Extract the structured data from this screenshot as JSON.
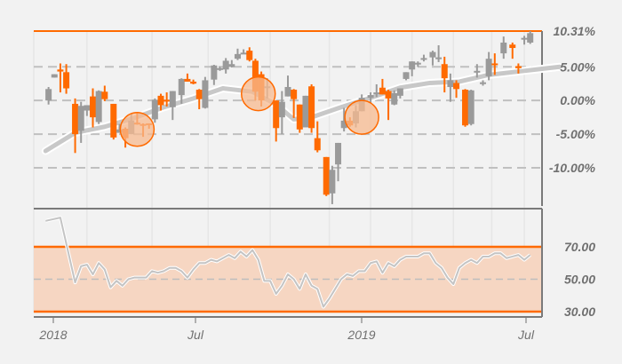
{
  "chart_data": [
    {
      "type": "candlestick",
      "title": "",
      "subtitle": "",
      "xlabel": "",
      "ylabel": "",
      "y_axis_position": "right",
      "y_tick_labels": [
        "10.31%",
        "5.00%",
        "0.00%",
        "-5.00%",
        "-10.00%"
      ],
      "y_ticks": [
        10.31,
        5.0,
        0.0,
        -5.0,
        -10.0
      ],
      "ylim": [
        -15.5,
        10.31
      ],
      "x_tick_labels": [
        "2018",
        "Jul",
        "2019",
        "Jul"
      ],
      "grid": {
        "horizontal": "dashed",
        "vertical": "light"
      },
      "colors": {
        "up": "#9a9a9a",
        "down": "#ff6a00",
        "moving_average": "#c8c8c8",
        "highlight_circle": "#f7b98f"
      },
      "top_line_label": "10.31%",
      "moving_average_series": {
        "name": "moving average",
        "x": [
          0,
          10,
          20,
          30,
          40,
          50,
          60,
          70,
          78,
          84,
          90,
          100,
          110,
          120,
          130,
          140,
          150,
          160,
          170,
          174
        ],
        "values": [
          -7.5,
          -4.8,
          -3.9,
          -2.6,
          -1.0,
          0.3,
          1.8,
          1.3,
          -0.6,
          -2.8,
          -2.5,
          -1.0,
          0.4,
          1.9,
          2.6,
          2.8,
          3.8,
          4.3,
          4.8,
          5.0
        ]
      },
      "candles": [
        {
          "x": 1,
          "open": 0.0,
          "close": 1.7,
          "high": 2.0,
          "low": -0.6
        },
        {
          "x": 3,
          "open": 3.4,
          "close": 3.9,
          "high": 3.9,
          "low": 3.4
        },
        {
          "x": 5,
          "open": 4.6,
          "close": 4.3,
          "high": 5.5,
          "low": 1.2
        },
        {
          "x": 7,
          "open": 4.2,
          "close": 1.8,
          "high": 5.4,
          "low": 1.0
        },
        {
          "x": 10,
          "open": -0.5,
          "close": -5.0,
          "high": 0.3,
          "low": -7.8
        },
        {
          "x": 12,
          "open": -4.5,
          "close": -0.8,
          "high": -0.2,
          "low": -6.3
        },
        {
          "x": 14,
          "open": -1.5,
          "close": -0.7,
          "high": -0.7,
          "low": -2.3
        },
        {
          "x": 16,
          "open": 0.6,
          "close": -2.5,
          "high": 1.8,
          "low": -4.0
        },
        {
          "x": 18,
          "open": -3.2,
          "close": 1.4,
          "high": 1.5,
          "low": -3.5
        },
        {
          "x": 20,
          "open": 1.3,
          "close": 0.2,
          "high": 2.2,
          "low": -0.1
        },
        {
          "x": 23,
          "open": -0.5,
          "close": -5.5,
          "high": -0.5,
          "low": -5.8
        },
        {
          "x": 25,
          "open": -4.8,
          "close": -4.3,
          "high": -3.5,
          "low": -4.8
        },
        {
          "x": 27,
          "open": -4.2,
          "close": -5.6,
          "high": -4.0,
          "low": -7.0
        },
        {
          "x": 29,
          "open": -5.0,
          "close": -3.0,
          "high": -2.0,
          "low": -5.0
        },
        {
          "x": 31,
          "open": -3.3,
          "close": -3.5,
          "high": -1.8,
          "low": -3.6
        },
        {
          "x": 33,
          "open": -3.5,
          "close": -3.6,
          "high": -3.4,
          "low": -5.4
        },
        {
          "x": 35,
          "open": -3.4,
          "close": -3.5,
          "high": -3.4,
          "low": -4.2
        },
        {
          "x": 37,
          "open": -2.8,
          "close": 0.1,
          "high": 0.3,
          "low": -3.3
        },
        {
          "x": 39,
          "open": 0.7,
          "close": -0.7,
          "high": 1.0,
          "low": -1.5
        },
        {
          "x": 41,
          "open": 0.1,
          "close": 0.0,
          "high": 1.2,
          "low": -0.9
        },
        {
          "x": 43,
          "open": -1.0,
          "close": 1.4,
          "high": 1.4,
          "low": -2.9
        },
        {
          "x": 46,
          "open": 0.8,
          "close": 3.2,
          "high": 3.3,
          "low": -0.5
        },
        {
          "x": 48,
          "open": 3.2,
          "close": 2.8,
          "high": 4.0,
          "low": 2.8
        },
        {
          "x": 50,
          "open": 2.8,
          "close": 2.5,
          "high": 3.1,
          "low": 2.4
        },
        {
          "x": 52,
          "open": 1.6,
          "close": 0.2,
          "high": 1.7,
          "low": -1.3
        },
        {
          "x": 54,
          "open": -1.1,
          "close": 3.0,
          "high": 3.5,
          "low": -1.2
        },
        {
          "x": 57,
          "open": 3.1,
          "close": 5.2,
          "high": 5.3,
          "low": 2.3
        },
        {
          "x": 59,
          "open": 4.6,
          "close": 4.8,
          "high": 5.0,
          "low": 4.4
        },
        {
          "x": 61,
          "open": 4.6,
          "close": 5.9,
          "high": 6.3,
          "low": 4.0
        },
        {
          "x": 63,
          "open": 5.0,
          "close": 5.4,
          "high": 6.0,
          "low": 4.9
        },
        {
          "x": 65,
          "open": 6.2,
          "close": 6.9,
          "high": 7.7,
          "low": 6.0
        },
        {
          "x": 67,
          "open": 7.0,
          "close": 7.1,
          "high": 7.6,
          "low": 6.9
        },
        {
          "x": 69,
          "open": 7.4,
          "close": 6.0,
          "high": 7.9,
          "low": 5.8
        },
        {
          "x": 71,
          "open": 5.9,
          "close": 1.3,
          "high": 6.2,
          "low": 0.0
        },
        {
          "x": 73,
          "open": 3.9,
          "close": 0.0,
          "high": 4.3,
          "low": -0.9
        },
        {
          "x": 75,
          "open": 1.9,
          "close": 2.1,
          "high": 3.3,
          "low": 0.3
        },
        {
          "x": 78,
          "open": 0.0,
          "close": -4.1,
          "high": 0.0,
          "low": -6.1
        },
        {
          "x": 80,
          "open": -2.5,
          "close": -0.2,
          "high": 1.4,
          "low": -5.0
        },
        {
          "x": 82,
          "open": 0.6,
          "close": 2.0,
          "high": 3.7,
          "low": 0.6
        },
        {
          "x": 84,
          "open": 1.6,
          "close": 0.2,
          "high": 1.7,
          "low": -2.6
        },
        {
          "x": 86,
          "open": -0.6,
          "close": -4.3,
          "high": -0.6,
          "low": -4.8
        },
        {
          "x": 88,
          "open": -4.0,
          "close": 0.7,
          "high": 0.7,
          "low": -4.0
        },
        {
          "x": 90,
          "open": 2.1,
          "close": -4.1,
          "high": 2.4,
          "low": -4.8
        },
        {
          "x": 92,
          "open": -5.6,
          "close": -7.4,
          "high": -3.1,
          "low": -7.7
        },
        {
          "x": 95,
          "open": -8.4,
          "close": -14.0,
          "high": -8.4,
          "low": -14.2
        },
        {
          "x": 97,
          "open": -13.8,
          "close": -10.3,
          "high": -9.7,
          "low": -15.4
        },
        {
          "x": 99,
          "open": -9.5,
          "close": -6.3,
          "high": -6.3,
          "low": -12.0
        },
        {
          "x": 101,
          "open": -4.1,
          "close": -3.0,
          "high": -1.1,
          "low": -4.6
        },
        {
          "x": 103,
          "open": -3.0,
          "close": -3.7,
          "high": -2.5,
          "low": -3.9
        },
        {
          "x": 105,
          "open": -3.4,
          "close": -1.6,
          "high": -0.7,
          "low": -4.0
        },
        {
          "x": 107,
          "open": -1.6,
          "close": 0.4,
          "high": 0.9,
          "low": -1.6
        },
        {
          "x": 110,
          "open": 0.4,
          "close": 0.8,
          "high": 1.2,
          "low": -0.4
        },
        {
          "x": 112,
          "open": 1.0,
          "close": 1.2,
          "high": 2.4,
          "low": 0.5
        },
        {
          "x": 114,
          "open": 1.9,
          "close": 0.9,
          "high": 3.2,
          "low": 0.9
        },
        {
          "x": 116,
          "open": 1.4,
          "close": 0.3,
          "high": 1.6,
          "low": -2.9
        },
        {
          "x": 118,
          "open": -0.6,
          "close": 1.1,
          "high": 1.5,
          "low": -0.7
        },
        {
          "x": 120,
          "open": 0.7,
          "close": 1.8,
          "high": 1.8,
          "low": 0.3
        },
        {
          "x": 122,
          "open": 3.2,
          "close": 4.2,
          "high": 4.2,
          "low": 3.0
        },
        {
          "x": 124,
          "open": 4.6,
          "close": 5.8,
          "high": 5.8,
          "low": 3.6
        },
        {
          "x": 126,
          "open": 5.4,
          "close": 5.6,
          "high": 5.8,
          "low": 5.0
        },
        {
          "x": 128,
          "open": 6.3,
          "close": 6.3,
          "high": 6.8,
          "low": 5.8
        },
        {
          "x": 131,
          "open": 6.4,
          "close": 7.2,
          "high": 7.4,
          "low": 5.2
        },
        {
          "x": 133,
          "open": 6.4,
          "close": 6.4,
          "high": 8.2,
          "low": 5.7
        },
        {
          "x": 135,
          "open": 5.4,
          "close": 3.3,
          "high": 6.5,
          "low": 1.2
        },
        {
          "x": 137,
          "open": 2.0,
          "close": 3.0,
          "high": 4.0,
          "low": -0.2
        },
        {
          "x": 139,
          "open": 2.6,
          "close": 1.7,
          "high": 3.0,
          "low": 0.4
        },
        {
          "x": 142,
          "open": 1.6,
          "close": -3.7,
          "high": 1.7,
          "low": -3.9
        },
        {
          "x": 144,
          "open": -3.5,
          "close": 1.5,
          "high": 1.6,
          "low": -3.7
        },
        {
          "x": 146,
          "open": 4.3,
          "close": 4.4,
          "high": 5.4,
          "low": 3.4
        },
        {
          "x": 148,
          "open": 2.6,
          "close": 2.7,
          "high": 3.0,
          "low": 2.2
        },
        {
          "x": 150,
          "open": 3.6,
          "close": 6.2,
          "high": 7.2,
          "low": 3.0
        },
        {
          "x": 152,
          "open": 5.5,
          "close": 5.4,
          "high": 7.0,
          "low": 3.8
        },
        {
          "x": 155,
          "open": 7.0,
          "close": 8.6,
          "high": 9.5,
          "low": 6.2
        },
        {
          "x": 158,
          "open": 8.3,
          "close": 7.8,
          "high": 8.6,
          "low": 6.2
        },
        {
          "x": 160,
          "open": 5.1,
          "close": 4.8,
          "high": 5.5,
          "low": 4.0
        },
        {
          "x": 162,
          "open": 9.3,
          "close": 9.3,
          "high": 9.6,
          "low": 8.3
        },
        {
          "x": 164,
          "open": 8.6,
          "close": 10.0,
          "high": 10.3,
          "low": 8.4
        }
      ],
      "highlight_circles": [
        {
          "x": 31,
          "y": -4.3
        },
        {
          "x": 72,
          "y": 1.0
        },
        {
          "x": 107,
          "y": -2.5
        }
      ]
    },
    {
      "type": "line",
      "title": "",
      "xlabel": "",
      "ylabel": "",
      "y_axis_position": "right",
      "y_tick_labels": [
        "70.00",
        "50.00",
        "30.00"
      ],
      "y_ticks": [
        70,
        50,
        30
      ],
      "ylim": [
        25,
        90
      ],
      "band": {
        "from": 30,
        "to": 70,
        "fill": "#f6d6c2",
        "edge": "#ff6a00"
      },
      "midline": 50,
      "x_tick_labels": [
        "2018",
        "Jul",
        "2019",
        "Jul"
      ],
      "series": [
        {
          "name": "oscillator",
          "x": [
            0,
            5,
            8,
            10,
            12,
            14,
            16,
            18,
            20,
            22,
            24,
            26,
            28,
            30,
            32,
            34,
            36,
            38,
            40,
            42,
            44,
            46,
            48,
            50,
            52,
            54,
            56,
            58,
            60,
            62,
            64,
            66,
            68,
            70,
            72,
            74,
            76,
            78,
            80,
            82,
            84,
            86,
            88,
            90,
            92,
            94,
            96,
            98,
            100,
            102,
            104,
            106,
            108,
            110,
            112,
            114,
            116,
            118,
            120,
            122,
            124,
            126,
            128,
            130,
            132,
            134,
            136,
            138,
            140,
            142,
            144,
            146,
            148,
            150,
            152,
            154,
            156,
            158,
            160,
            162,
            164
          ],
          "values": [
            86,
            88,
            64,
            48,
            58,
            59,
            53,
            60,
            56,
            45,
            49,
            46,
            50,
            51,
            51,
            51,
            55,
            54,
            55,
            57,
            57,
            55,
            51,
            56,
            60,
            60,
            62,
            61,
            63,
            65,
            63,
            67,
            64,
            68,
            62,
            49,
            49,
            41,
            46,
            53,
            50,
            44,
            53,
            46,
            44,
            33,
            38,
            44,
            50,
            53,
            52,
            55,
            55,
            60,
            61,
            54,
            60,
            58,
            62,
            64,
            64,
            64,
            66,
            66,
            60,
            57,
            51,
            47,
            57,
            60,
            62,
            60,
            64,
            64,
            66,
            66,
            63,
            64,
            65,
            62,
            65
          ]
        }
      ]
    }
  ]
}
